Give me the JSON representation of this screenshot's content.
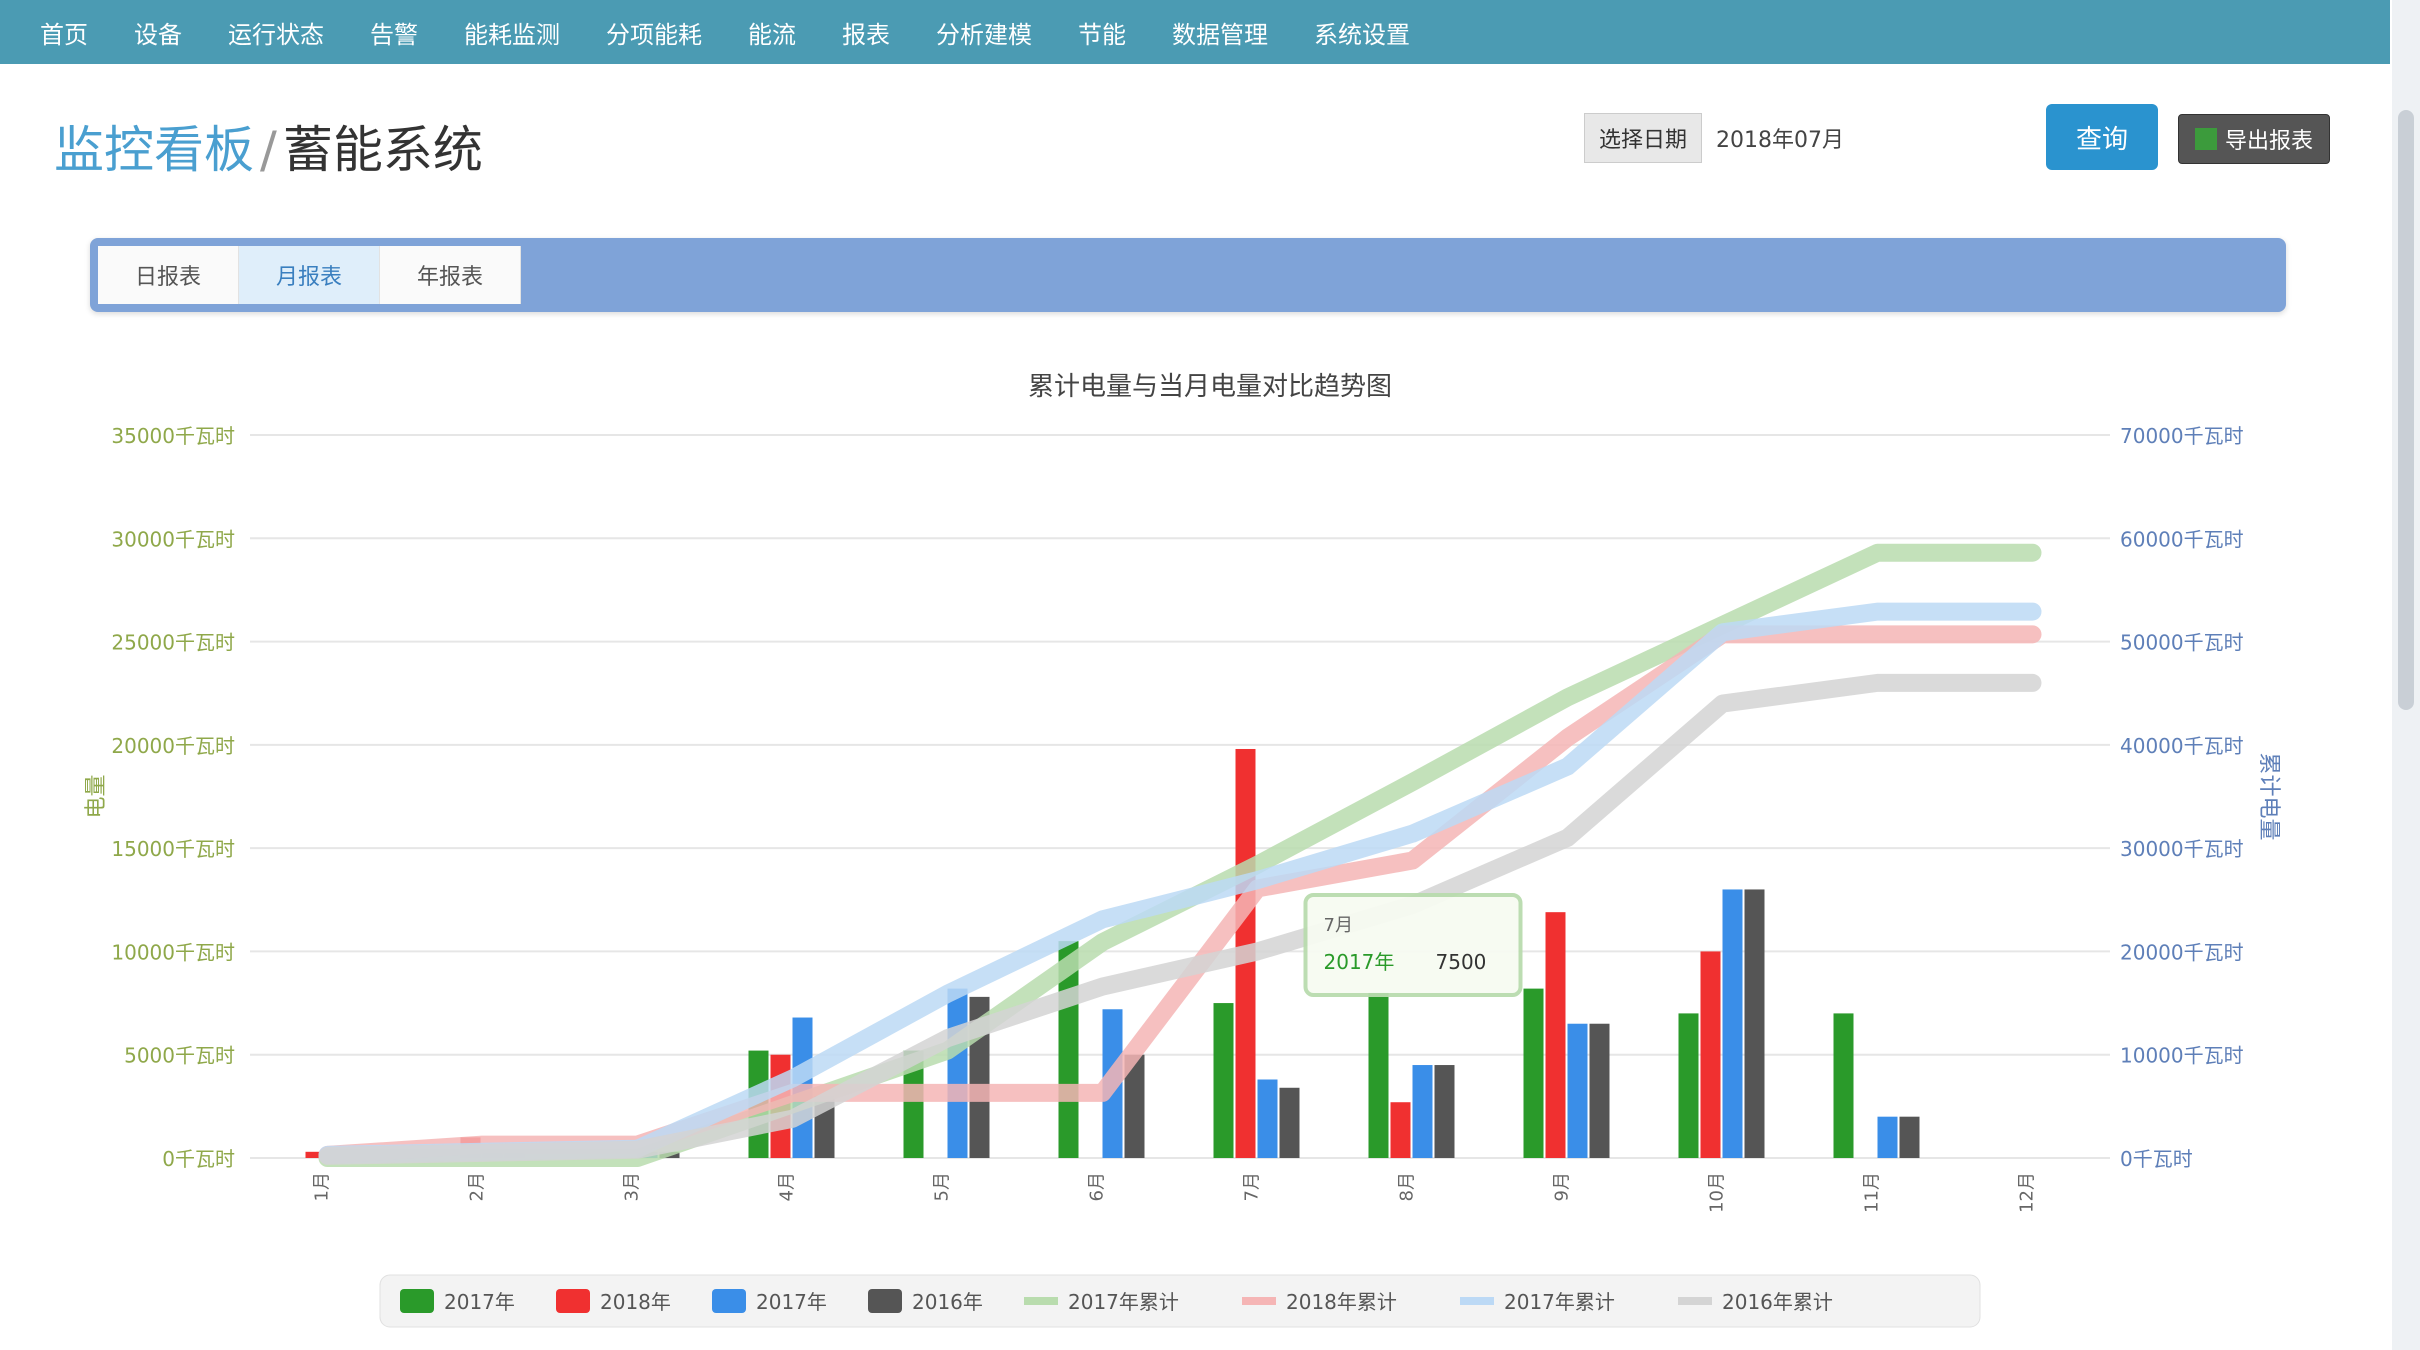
{
  "nav": {
    "items": [
      "首页",
      "设备",
      "运行状态",
      "告警",
      "能耗监测",
      "分项能耗",
      "能流",
      "报表",
      "分析建模",
      "节能",
      "数据管理",
      "系统设置"
    ]
  },
  "header": {
    "crumb_link": "监控看板",
    "crumb_sep": "/",
    "crumb_title": "蓄能系统",
    "date_label": "选择日期",
    "date_value": "2018年07月",
    "query_label": "查询",
    "export_label": "导出报表"
  },
  "tabs": {
    "items": [
      "日报表",
      "月报表",
      "年报表"
    ],
    "active_index": 1
  },
  "chart_data": {
    "type": "bar+line",
    "title": "累计电量与当月电量对比趋势图",
    "ylabel_left": "电量",
    "ylabel_right": "累计电量",
    "left_ticks": [
      "0千瓦时",
      "5000千瓦时",
      "10000千瓦时",
      "15000千瓦时",
      "20000千瓦时",
      "25000千瓦时",
      "30000千瓦时",
      "35000千瓦时"
    ],
    "right_ticks": [
      "0千瓦时",
      "10000千瓦时",
      "20000千瓦时",
      "30000千瓦时",
      "40000千瓦时",
      "50000千瓦时",
      "60000千瓦时",
      "70000千瓦时"
    ],
    "left_ylim": [
      0,
      35000
    ],
    "right_ylim": [
      0,
      70000
    ],
    "categories": [
      "1月",
      "2月",
      "3月",
      "4月",
      "5月",
      "6月",
      "7月",
      "8月",
      "9月",
      "10月",
      "11月",
      "12月"
    ],
    "bar_series": [
      {
        "name": "2017年",
        "color": "#2a9a2a",
        "values": [
          0,
          0,
          0,
          5200,
          5200,
          10500,
          7500,
          8000,
          8200,
          7000,
          7000,
          0
        ]
      },
      {
        "name": "2018年",
        "color": "#f03030",
        "values": [
          300,
          1000,
          0,
          5000,
          0,
          0,
          19800,
          2700,
          11900,
          10000,
          0,
          0
        ]
      },
      {
        "name": "2017年",
        "color": "#3a8ee8",
        "values": [
          300,
          300,
          300,
          6800,
          8200,
          7200,
          3800,
          4500,
          6500,
          13000,
          2000,
          0
        ]
      },
      {
        "name": "2016年",
        "color": "#555555",
        "values": [
          200,
          300,
          300,
          3000,
          7800,
          5000,
          3400,
          4500,
          6500,
          13000,
          2000,
          0
        ]
      }
    ],
    "line_series": [
      {
        "name": "2017年累计",
        "color": "#b9dcae",
        "values": [
          0,
          0,
          0,
          5200,
          10400,
          20900,
          28400,
          36400,
          44600,
          51600,
          58600,
          58600
        ]
      },
      {
        "name": "2018年累计",
        "color": "#f5b5b5",
        "values": [
          300,
          1300,
          1300,
          6300,
          6300,
          6300,
          26100,
          28800,
          40700,
          50700,
          50700,
          50700
        ]
      },
      {
        "name": "2017年累计",
        "color": "#bcd9f5",
        "values": [
          300,
          600,
          900,
          7700,
          15900,
          23100,
          26900,
          31400,
          37900,
          50900,
          52900,
          52900
        ]
      },
      {
        "name": "2016年累计",
        "color": "#d4d4d4",
        "values": [
          200,
          500,
          800,
          3800,
          11600,
          16600,
          20000,
          24500,
          31000,
          44000,
          46000,
          46000
        ]
      }
    ],
    "tooltip": {
      "title": "7月",
      "series": "2017年",
      "value": "7500"
    },
    "grid": true,
    "legend_position": "bottom"
  }
}
